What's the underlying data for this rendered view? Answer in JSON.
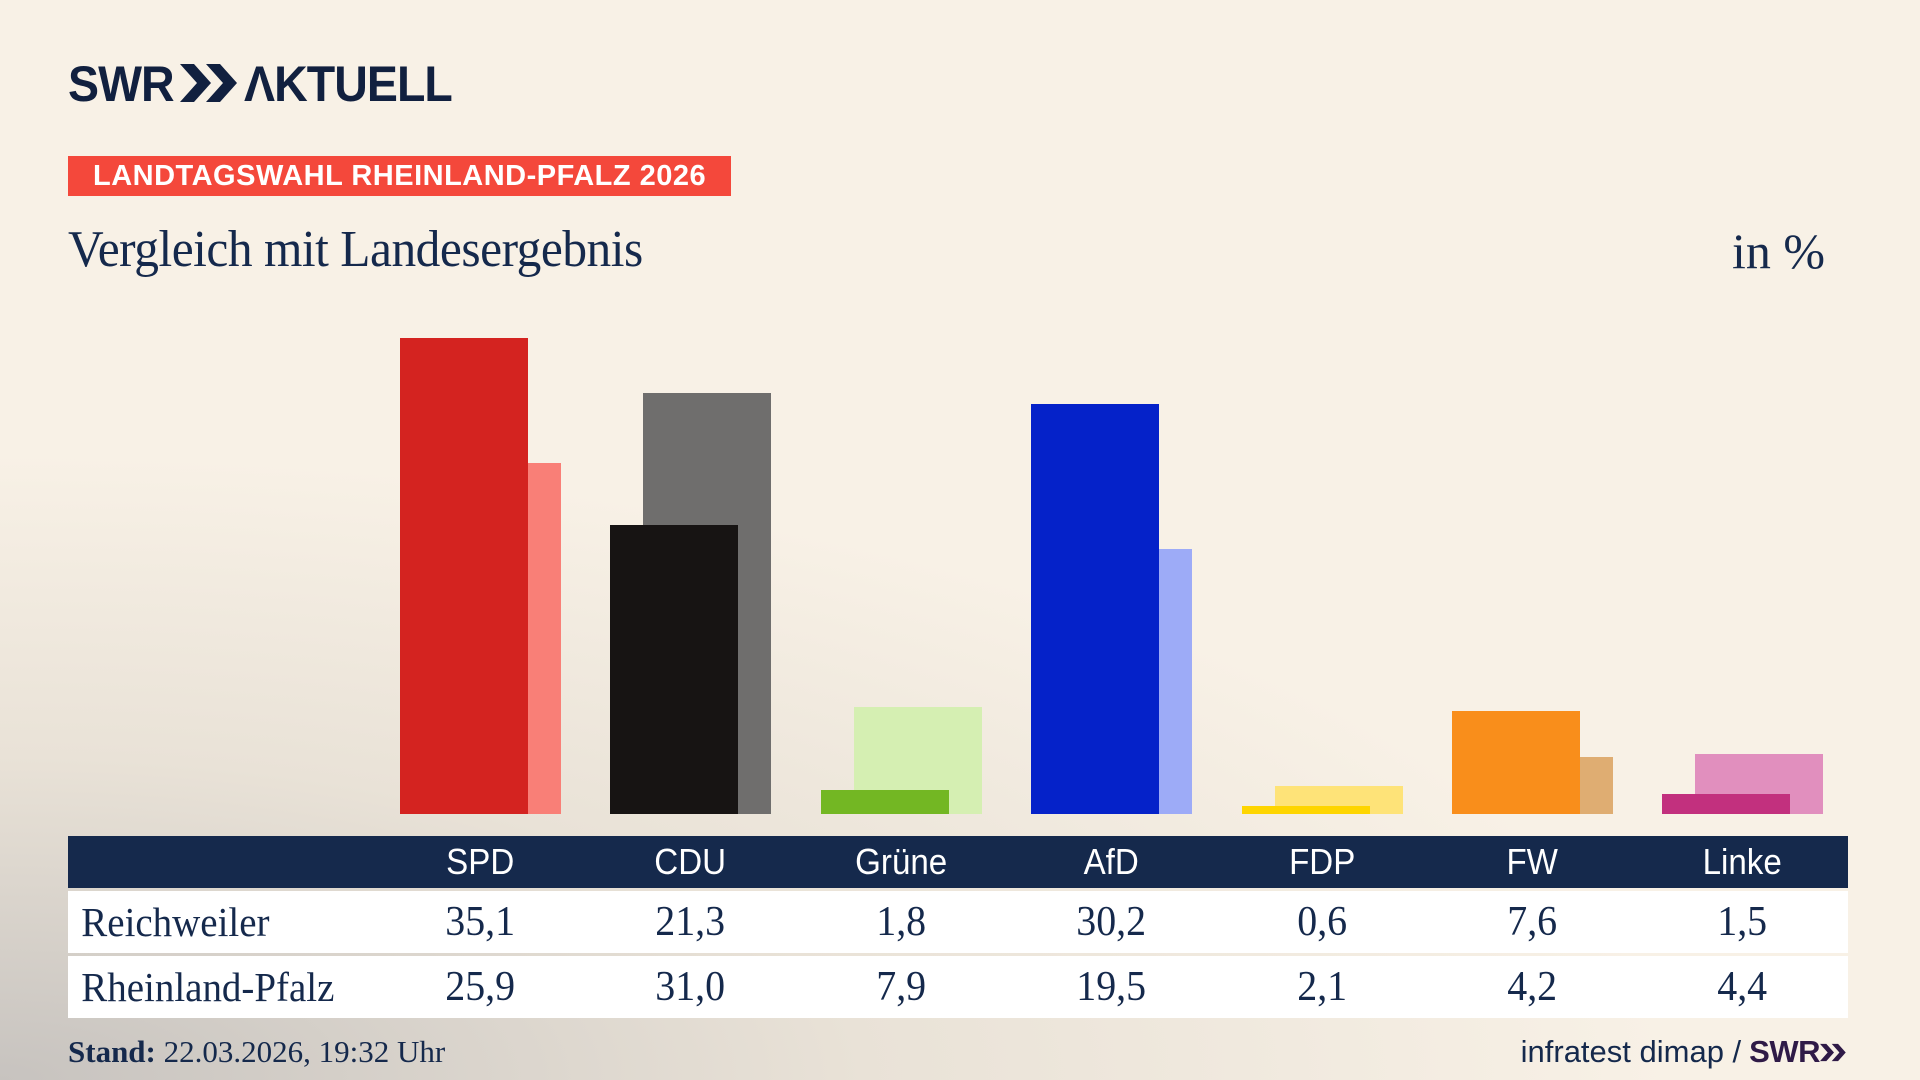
{
  "brand": {
    "swr": "SWR",
    "aktuell": "ΛKTUELL"
  },
  "badge": {
    "text": "LANDTAGSWAHL RHEINLAND-PFALZ 2026",
    "bg": "#f4483b"
  },
  "title": "Vergleich mit Landesergebnis",
  "unit_label": "in %",
  "chart_data": {
    "type": "bar",
    "categories": [
      "SPD",
      "CDU",
      "Grüne",
      "AfD",
      "FDP",
      "FW",
      "Linke"
    ],
    "series": [
      {
        "name": "Reichweiler",
        "values": [
          35.1,
          21.3,
          1.8,
          30.2,
          0.6,
          7.6,
          1.5
        ]
      },
      {
        "name": "Rheinland-Pfalz",
        "values": [
          25.9,
          31.0,
          7.9,
          19.5,
          2.1,
          4.2,
          4.4
        ]
      }
    ],
    "colors_front": [
      "#d42320",
      "#171413",
      "#73b723",
      "#0522c9",
      "#fed500",
      "#f98e1b",
      "#c2307e"
    ],
    "colors_back": [
      "#f97f77",
      "#6f6e6d",
      "#d5efb2",
      "#9dabf7",
      "#fee378",
      "#dfad72",
      "#e18fbe"
    ],
    "title": "Vergleich mit Landesergebnis",
    "xlabel": "",
    "ylabel": "in %",
    "ylim": [
      0,
      36.8
    ],
    "grid": false,
    "legend_position": "table-below"
  },
  "table": {
    "columns": [
      "SPD",
      "CDU",
      "Grüne",
      "AfD",
      "FDP",
      "FW",
      "Linke"
    ],
    "rows": [
      {
        "label": "Reichweiler",
        "values": [
          "35,1",
          "21,3",
          "1,8",
          "30,2",
          "0,6",
          "7,6",
          "1,5"
        ]
      },
      {
        "label": "Rheinland-Pfalz",
        "values": [
          "25,9",
          "31,0",
          "7,9",
          "19,5",
          "2,1",
          "4,2",
          "4,4"
        ]
      }
    ],
    "header_bg": "#15294c",
    "text_color": "#15294c"
  },
  "footer": {
    "stand_label": "Stand:",
    "stand_value": "22.03.2026, 19:32 Uhr",
    "source": "infratest dimap /",
    "source_brand": "SWR"
  }
}
